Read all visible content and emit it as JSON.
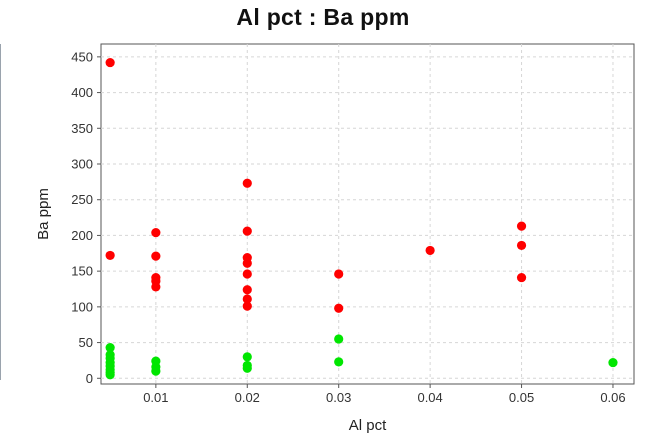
{
  "chart_data": {
    "type": "scatter",
    "title": "Al pct : Ba ppm",
    "xlabel": "Al pct",
    "ylabel": "Ba ppm",
    "xlim": [
      0.004,
      0.0623
    ],
    "ylim": [
      -8,
      468
    ],
    "xticks": [
      0.01,
      0.02,
      0.03,
      0.04,
      0.05,
      0.06
    ],
    "yticks": [
      0,
      50,
      100,
      150,
      200,
      250,
      300,
      350,
      400,
      450
    ],
    "grid": true,
    "series": [
      {
        "color": "#ff0000",
        "points": [
          [
            0.005,
            442
          ],
          [
            0.005,
            172
          ],
          [
            0.01,
            204
          ],
          [
            0.01,
            171
          ],
          [
            0.01,
            141
          ],
          [
            0.01,
            136
          ],
          [
            0.01,
            128
          ],
          [
            0.02,
            273
          ],
          [
            0.02,
            206
          ],
          [
            0.02,
            169
          ],
          [
            0.02,
            161
          ],
          [
            0.02,
            146
          ],
          [
            0.02,
            124
          ],
          [
            0.02,
            111
          ],
          [
            0.02,
            101
          ],
          [
            0.03,
            146
          ],
          [
            0.03,
            98
          ],
          [
            0.04,
            179
          ],
          [
            0.05,
            213
          ],
          [
            0.05,
            186
          ],
          [
            0.05,
            141
          ]
        ]
      },
      {
        "color": "#00e600",
        "points": [
          [
            0.005,
            43
          ],
          [
            0.005,
            33
          ],
          [
            0.005,
            28
          ],
          [
            0.005,
            22
          ],
          [
            0.005,
            17
          ],
          [
            0.005,
            12
          ],
          [
            0.005,
            8
          ],
          [
            0.005,
            5
          ],
          [
            0.01,
            24
          ],
          [
            0.01,
            16
          ],
          [
            0.01,
            10
          ],
          [
            0.02,
            30
          ],
          [
            0.02,
            18
          ],
          [
            0.02,
            14
          ],
          [
            0.03,
            55
          ],
          [
            0.03,
            23
          ],
          [
            0.06,
            22
          ]
        ]
      }
    ]
  }
}
